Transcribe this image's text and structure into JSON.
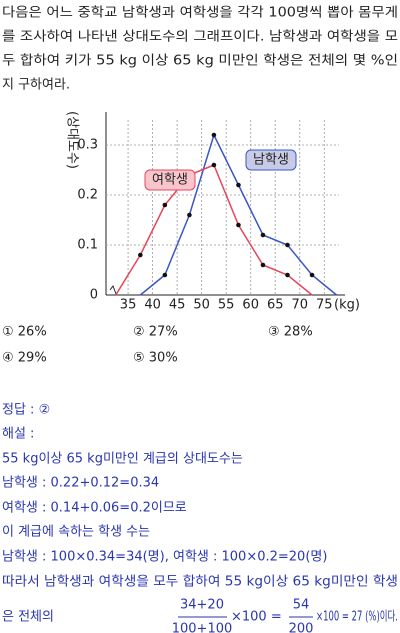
{
  "problem": {
    "lines": [
      "다음은 어느 중학교 남학생과 여학생을 각각 100명씩 뽑아 몸무게",
      "를 조사하여 나타낸 상대도수의 그래프이다. 남학생과 여학생을 모",
      "두 합하여 키가 55 kg 이상 65 kg 미만인 학생은 전체의 몇 %인",
      "지 구하여라."
    ]
  },
  "chart_data": {
    "type": "line",
    "ylabel": "(상대도수)",
    "x_unit": "(kg)",
    "x": [
      32.5,
      37.5,
      42.5,
      47.5,
      52.5,
      57.5,
      62.5,
      67.5,
      72.5,
      77.5
    ],
    "series": [
      {
        "name": "남학생",
        "color": "#3a57c8",
        "values": [
          null,
          0,
          0.04,
          0.16,
          0.32,
          0.22,
          0.12,
          0.1,
          0.04,
          0
        ]
      },
      {
        "name": "여학생",
        "color": "#e8455a",
        "values": [
          0,
          0.08,
          0.18,
          0.24,
          0.26,
          0.14,
          0.06,
          0.04,
          0,
          null
        ]
      }
    ],
    "xlim": [
      30.5,
      78
    ],
    "xticks": [
      35,
      40,
      45,
      50,
      55,
      60,
      65,
      70,
      75
    ],
    "ylim": [
      0,
      0.35
    ],
    "yticks": [
      0,
      0.1,
      0.2,
      0.3
    ],
    "grid": true
  },
  "choices": [
    "① 26%",
    "② 27%",
    "③ 28%",
    "④ 29%",
    "⑤ 30%"
  ],
  "solution": {
    "lines": [
      "정답 : ②",
      "해설 :",
      "55 kg이상 65 kg미만인 계급의 상대도수는",
      "남학생 : 0.22+0.12=0.34",
      "여학생 : 0.14+0.06=0.2이므로",
      "이 계급에 속하는 학생 수는",
      "남학생 : 100×0.34=34(명), 여학생 : 100×0.2=20(명)",
      "따라서 남학생과 여학생을 모두 합하여 55 kg이상 65 kg미만인 학생"
    ],
    "final": {
      "prefix": "은 전체의",
      "frac1_num": "34+20",
      "frac1_den": "100+100",
      "mid": "×100 =",
      "frac2_num": "54",
      "frac2_den": "200",
      "rest": "×100 = 27 (%)이다."
    }
  }
}
